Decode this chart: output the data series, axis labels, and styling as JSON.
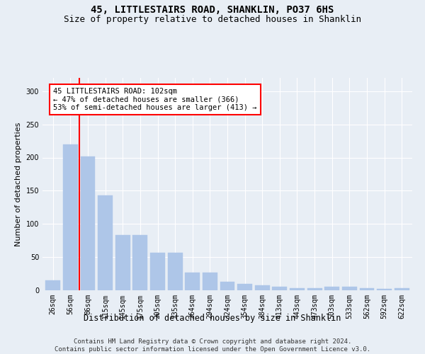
{
  "title": "45, LITTLESTAIRS ROAD, SHANKLIN, PO37 6HS",
  "subtitle": "Size of property relative to detached houses in Shanklin",
  "xlabel": "Distribution of detached houses by size in Shanklin",
  "ylabel": "Number of detached properties",
  "bar_labels": [
    "26sqm",
    "56sqm",
    "86sqm",
    "115sqm",
    "145sqm",
    "175sqm",
    "205sqm",
    "235sqm",
    "264sqm",
    "294sqm",
    "324sqm",
    "354sqm",
    "384sqm",
    "413sqm",
    "443sqm",
    "473sqm",
    "503sqm",
    "533sqm",
    "562sqm",
    "592sqm",
    "622sqm"
  ],
  "bar_values": [
    15,
    220,
    202,
    143,
    83,
    83,
    57,
    57,
    27,
    27,
    13,
    10,
    8,
    5,
    3,
    3,
    5,
    5,
    3,
    2,
    3
  ],
  "bar_color": "#aec6e8",
  "bar_edge_color": "#aec6e8",
  "vline_x": 1.5,
  "vline_color": "red",
  "annotation_text": "45 LITTLESTAIRS ROAD: 102sqm\n← 47% of detached houses are smaller (366)\n53% of semi-detached houses are larger (413) →",
  "annotation_box_color": "white",
  "annotation_box_edge_color": "red",
  "ylim": [
    0,
    320
  ],
  "yticks": [
    0,
    50,
    100,
    150,
    200,
    250,
    300
  ],
  "bg_color": "#e8eef5",
  "plot_bg_color": "#e8eef5",
  "grid_color": "white",
  "footer_text": "Contains HM Land Registry data © Crown copyright and database right 2024.\nContains public sector information licensed under the Open Government Licence v3.0.",
  "title_fontsize": 10,
  "subtitle_fontsize": 9,
  "xlabel_fontsize": 8.5,
  "ylabel_fontsize": 8,
  "tick_fontsize": 7,
  "annotation_fontsize": 7.5,
  "footer_fontsize": 6.5
}
